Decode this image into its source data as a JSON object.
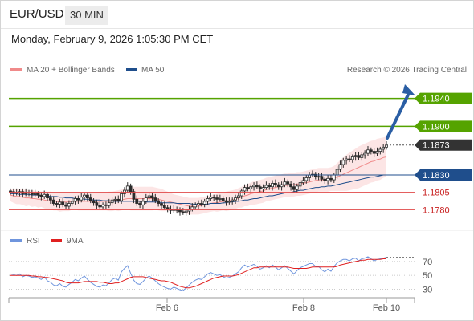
{
  "header": {
    "symbol": "EUR/USD",
    "timeframe": "30 MIN",
    "datetime": "Monday, February 9, 2026 1:05:30 PM CET"
  },
  "legend": {
    "ma20": "MA 20 + Bollinger Bands",
    "ma50": "MA 50",
    "credit": "Research © 2026 Trading Central",
    "rsi": "RSI",
    "ma9": "9MA"
  },
  "colors": {
    "green": "#55a300",
    "blue": "#1f4e8c",
    "red": "#e04848",
    "candle": "#2a2a2a",
    "ma20": "#f08a8a",
    "band": "#fbe0e0",
    "rsi": "#6f95dd",
    "ma9": "#e02020"
  },
  "chart_data": [
    {
      "type": "candlestick",
      "ylim": [
        1.1755,
        1.1965
      ],
      "x_ticks": [
        "Feb 6",
        "Feb 8",
        "Feb 10"
      ],
      "levels": [
        {
          "label": "1.1940",
          "value": 1.194,
          "kind": "resistance"
        },
        {
          "label": "1.1900",
          "value": 1.19,
          "kind": "resistance"
        },
        {
          "label": "1.1873",
          "value": 1.1873,
          "kind": "current"
        },
        {
          "label": "1.1830",
          "value": 1.183,
          "kind": "pivot"
        },
        {
          "label": "1.1805",
          "value": 1.1805,
          "kind": "support"
        },
        {
          "label": "1.1780",
          "value": 1.178,
          "kind": "support"
        }
      ],
      "close": [
        1.1806,
        1.1805,
        1.1804,
        1.1806,
        1.1803,
        1.1805,
        1.1804,
        1.1802,
        1.1803,
        1.1801,
        1.1799,
        1.1802,
        1.1797,
        1.1794,
        1.1789,
        1.1788,
        1.1791,
        1.1787,
        1.1785,
        1.1789,
        1.1792,
        1.1796,
        1.1794,
        1.1798,
        1.1801,
        1.1797,
        1.1793,
        1.179,
        1.1786,
        1.1784,
        1.1787,
        1.1786,
        1.179,
        1.1794,
        1.1795,
        1.1793,
        1.1803,
        1.1808,
        1.1814,
        1.1806,
        1.1795,
        1.1789,
        1.1787,
        1.1792,
        1.1797,
        1.18,
        1.1797,
        1.1793,
        1.1789,
        1.1786,
        1.1783,
        1.1781,
        1.1779,
        1.1781,
        1.1779,
        1.1777,
        1.1776,
        1.1778,
        1.1781,
        1.1784,
        1.1787,
        1.1789,
        1.1788,
        1.1792,
        1.1796,
        1.1798,
        1.1797,
        1.1795,
        1.1796,
        1.1793,
        1.1791,
        1.1792,
        1.1794,
        1.1797,
        1.18,
        1.1807,
        1.1812,
        1.181,
        1.1813,
        1.1815,
        1.1813,
        1.181,
        1.1812,
        1.1815,
        1.1813,
        1.1818,
        1.1816,
        1.1813,
        1.1816,
        1.182,
        1.1817,
        1.1813,
        1.1809,
        1.1814,
        1.1819,
        1.1822,
        1.1826,
        1.183,
        1.1831,
        1.1828,
        1.1828,
        1.1824,
        1.1822,
        1.1825,
        1.1823,
        1.183,
        1.1838,
        1.1845,
        1.1851,
        1.1853,
        1.1852,
        1.1856,
        1.1858,
        1.1855,
        1.1859,
        1.1861,
        1.1866,
        1.1864,
        1.1861,
        1.1864,
        1.1867,
        1.187,
        1.1873
      ],
      "ma20": [
        1.1801,
        1.18,
        1.1799,
        1.1799,
        1.1798,
        1.1797,
        1.1797,
        1.1796,
        1.1796,
        1.1795,
        1.1795,
        1.1794,
        1.1793,
        1.1793,
        1.1792,
        1.1792,
        1.1791,
        1.1791,
        1.1791,
        1.1791,
        1.1792,
        1.1792,
        1.1792,
        1.1792,
        1.1792,
        1.1792,
        1.1792,
        1.1792,
        1.1792,
        1.1792,
        1.1792,
        1.1792,
        1.1792,
        1.1792,
        1.1793,
        1.1793,
        1.1794,
        1.1795,
        1.1796,
        1.1796,
        1.1796,
        1.1796,
        1.1796,
        1.1796,
        1.1796,
        1.1796,
        1.1796,
        1.1796,
        1.1795,
        1.1794,
        1.1793,
        1.1792,
        1.1791,
        1.179,
        1.1789,
        1.1788,
        1.1787,
        1.1786,
        1.1785,
        1.1785,
        1.1785,
        1.1785,
        1.1786,
        1.1787,
        1.1788,
        1.1789,
        1.179,
        1.179,
        1.1791,
        1.1792,
        1.1792,
        1.1793,
        1.1794,
        1.1795,
        1.1797,
        1.1798,
        1.18,
        1.1801,
        1.1803,
        1.1804,
        1.1805,
        1.1806,
        1.1807,
        1.1809,
        1.181,
        1.1811,
        1.1812,
        1.1813,
        1.1814,
        1.1815,
        1.1815,
        1.1816,
        1.1816,
        1.1817,
        1.1817,
        1.1818,
        1.1819,
        1.182,
        1.1821,
        1.1822,
        1.1823,
        1.1823,
        1.1823,
        1.1823,
        1.1824,
        1.1825,
        1.1827,
        1.1829,
        1.1831,
        1.1833,
        1.1835,
        1.1837,
        1.1839,
        1.1841,
        1.1843,
        1.1845,
        1.1847,
        1.1849,
        1.185,
        1.1852,
        1.1853,
        1.1855,
        1.1856
      ],
      "bb_upper": [
        1.181,
        1.181,
        1.181,
        1.181,
        1.1809,
        1.1809,
        1.1808,
        1.1808,
        1.1807,
        1.1807,
        1.1806,
        1.1806,
        1.1806,
        1.1806,
        1.1805,
        1.1805,
        1.1805,
        1.1804,
        1.1804,
        1.1804,
        1.1804,
        1.1804,
        1.1805,
        1.1805,
        1.1805,
        1.1805,
        1.1805,
        1.1805,
        1.1805,
        1.1805,
        1.1805,
        1.1805,
        1.1806,
        1.1806,
        1.1807,
        1.1808,
        1.1809,
        1.181,
        1.1812,
        1.1813,
        1.1813,
        1.1813,
        1.1813,
        1.1813,
        1.1813,
        1.1813,
        1.1813,
        1.1812,
        1.1811,
        1.181,
        1.1808,
        1.1806,
        1.1804,
        1.1802,
        1.1801,
        1.18,
        1.1799,
        1.1798,
        1.1797,
        1.1797,
        1.1797,
        1.1797,
        1.1798,
        1.1799,
        1.18,
        1.1801,
        1.1802,
        1.1803,
        1.1804,
        1.1805,
        1.1806,
        1.1807,
        1.1808,
        1.1809,
        1.1811,
        1.1813,
        1.1815,
        1.1817,
        1.1819,
        1.1821,
        1.1822,
        1.1823,
        1.1824,
        1.1826,
        1.1827,
        1.1828,
        1.1829,
        1.183,
        1.1831,
        1.1832,
        1.1832,
        1.1833,
        1.1833,
        1.1834,
        1.1834,
        1.1835,
        1.1836,
        1.1837,
        1.1838,
        1.1839,
        1.184,
        1.184,
        1.184,
        1.184,
        1.1841,
        1.1843,
        1.1847,
        1.1851,
        1.1855,
        1.1859,
        1.1862,
        1.1865,
        1.1868,
        1.1871,
        1.1873,
        1.1875,
        1.1877,
        1.1879,
        1.188,
        1.1882,
        1.1883,
        1.1884,
        1.1885
      ],
      "bb_lower": [
        1.1792,
        1.179,
        1.1788,
        1.1788,
        1.1787,
        1.1785,
        1.1786,
        1.1784,
        1.1785,
        1.1783,
        1.1784,
        1.1782,
        1.178,
        1.178,
        1.1779,
        1.1779,
        1.1777,
        1.1778,
        1.1778,
        1.1778,
        1.178,
        1.178,
        1.1779,
        1.1779,
        1.1779,
        1.1779,
        1.1779,
        1.1779,
        1.1779,
        1.1779,
        1.1779,
        1.1779,
        1.1778,
        1.1778,
        1.1779,
        1.1778,
        1.1779,
        1.178,
        1.178,
        1.1779,
        1.1779,
        1.1779,
        1.1779,
        1.1779,
        1.1779,
        1.1779,
        1.1779,
        1.178,
        1.1779,
        1.1778,
        1.1778,
        1.1778,
        1.1778,
        1.1778,
        1.1777,
        1.1776,
        1.1775,
        1.1774,
        1.1773,
        1.1773,
        1.1773,
        1.1773,
        1.1774,
        1.1775,
        1.1776,
        1.1777,
        1.1778,
        1.1777,
        1.1778,
        1.1779,
        1.1778,
        1.1779,
        1.178,
        1.1781,
        1.1783,
        1.1783,
        1.1785,
        1.1785,
        1.1787,
        1.1787,
        1.1788,
        1.1789,
        1.179,
        1.1792,
        1.1793,
        1.1794,
        1.1795,
        1.1796,
        1.1797,
        1.1798,
        1.1798,
        1.1799,
        1.1799,
        1.18,
        1.18,
        1.1801,
        1.1802,
        1.1803,
        1.1804,
        1.1805,
        1.1806,
        1.1806,
        1.1806,
        1.1806,
        1.1807,
        1.1807,
        1.1807,
        1.1807,
        1.1807,
        1.1807,
        1.1808,
        1.1809,
        1.181,
        1.1811,
        1.1813,
        1.1815,
        1.1817,
        1.1819,
        1.182,
        1.1822,
        1.1823,
        1.1826,
        1.1827
      ],
      "ma50": [
        1.1803,
        1.1803,
        1.1803,
        1.1802,
        1.1802,
        1.1802,
        1.1802,
        1.1801,
        1.1801,
        1.1801,
        1.18,
        1.18,
        1.18,
        1.1799,
        1.1799,
        1.1799,
        1.1798,
        1.1798,
        1.1797,
        1.1797,
        1.1797,
        1.1796,
        1.1796,
        1.1796,
        1.1795,
        1.1795,
        1.1795,
        1.1794,
        1.1794,
        1.1794,
        1.1793,
        1.1793,
        1.1793,
        1.1792,
        1.1792,
        1.1792,
        1.1792,
        1.1792,
        1.1792,
        1.1792,
        1.1792,
        1.1792,
        1.1792,
        1.1791,
        1.1791,
        1.1791,
        1.1791,
        1.1791,
        1.1791,
        1.179,
        1.179,
        1.179,
        1.179,
        1.179,
        1.1789,
        1.1789,
        1.1789,
        1.1789,
        1.1789,
        1.1788,
        1.1788,
        1.1788,
        1.1788,
        1.1788,
        1.1788,
        1.1789,
        1.1789,
        1.1789,
        1.1789,
        1.179,
        1.179,
        1.1791,
        1.1791,
        1.1792,
        1.1792,
        1.1793,
        1.1794,
        1.1794,
        1.1795,
        1.1796,
        1.1796,
        1.1797,
        1.1798,
        1.1799,
        1.18,
        1.18,
        1.1801,
        1.1802,
        1.1803,
        1.1804,
        1.1804,
        1.1805,
        1.1806,
        1.1807,
        1.1808,
        1.1808,
        1.1809,
        1.181,
        1.1811,
        1.1812,
        1.1812,
        1.1813,
        1.1813,
        1.1814,
        1.1814,
        1.1815,
        1.1816,
        1.1817,
        1.1818,
        1.1819,
        1.182,
        1.1821,
        1.1822,
        1.1823,
        1.1824,
        1.1825,
        1.1826,
        1.1827,
        1.1827,
        1.1828,
        1.1829,
        1.183,
        1.183
      ]
    },
    {
      "type": "line",
      "ylim": [
        20,
        85
      ],
      "y_ticks": [
        70,
        50,
        30
      ],
      "series": [
        {
          "name": "RSI",
          "values": [
            52,
            51,
            50,
            52,
            48,
            50,
            49,
            47,
            48,
            46,
            44,
            48,
            42,
            40,
            36,
            35,
            38,
            34,
            33,
            37,
            40,
            44,
            42,
            46,
            49,
            44,
            40,
            37,
            34,
            33,
            36,
            35,
            39,
            44,
            46,
            43,
            55,
            60,
            64,
            53,
            43,
            38,
            37,
            41,
            46,
            49,
            46,
            42,
            38,
            35,
            33,
            31,
            30,
            33,
            31,
            29,
            28,
            32,
            36,
            40,
            43,
            45,
            44,
            48,
            52,
            54,
            52,
            50,
            51,
            48,
            46,
            47,
            49,
            52,
            55,
            61,
            65,
            62,
            64,
            66,
            63,
            59,
            61,
            64,
            61,
            65,
            62,
            58,
            61,
            64,
            60,
            56,
            52,
            57,
            61,
            63,
            65,
            67,
            67,
            63,
            63,
            58,
            55,
            59,
            56,
            63,
            68,
            71,
            73,
            73,
            71,
            74,
            75,
            71,
            74,
            75,
            77,
            74,
            71,
            73,
            74,
            75,
            76
          ]
        },
        {
          "name": "9MA",
          "values": [
            50,
            50,
            50,
            50,
            50,
            50,
            50,
            49,
            49,
            48,
            48,
            47,
            47,
            46,
            45,
            44,
            43,
            42,
            40,
            39,
            39,
            39,
            39,
            40,
            41,
            41,
            41,
            41,
            41,
            40,
            40,
            39,
            38,
            38,
            39,
            39,
            41,
            43,
            45,
            47,
            48,
            48,
            48,
            48,
            47,
            46,
            45,
            44,
            43,
            42,
            42,
            41,
            40,
            38,
            36,
            34,
            33,
            32,
            32,
            33,
            34,
            36,
            38,
            40,
            42,
            44,
            46,
            47,
            48,
            49,
            49,
            49,
            49,
            50,
            51,
            53,
            55,
            57,
            59,
            61,
            61,
            62,
            62,
            62,
            62,
            62,
            62,
            62,
            62,
            62,
            62,
            61,
            60,
            60,
            60,
            60,
            60,
            61,
            62,
            62,
            62,
            62,
            62,
            62,
            62,
            62,
            63,
            65,
            66,
            67,
            68,
            69,
            70,
            71,
            72,
            72,
            73,
            73,
            73,
            73,
            73,
            74,
            74
          ]
        }
      ]
    }
  ]
}
